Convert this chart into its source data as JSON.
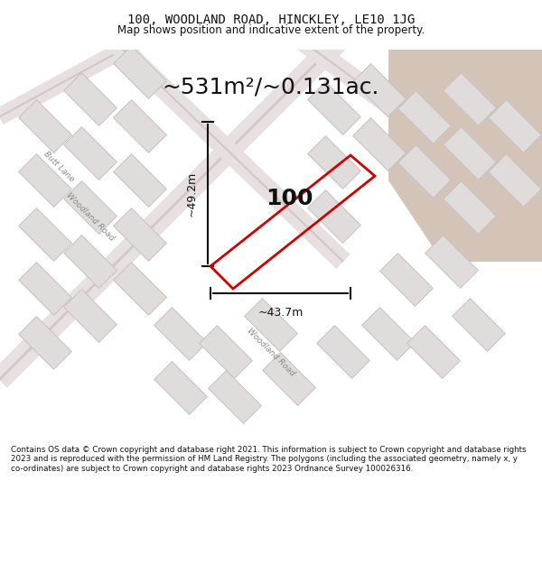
{
  "title_line1": "100, WOODLAND ROAD, HINCKLEY, LE10 1JG",
  "title_line2": "Map shows position and indicative extent of the property.",
  "area_text": "~531m²/~0.131ac.",
  "property_number": "100",
  "dim_vertical": "~49.2m",
  "dim_horizontal": "~43.7m",
  "footer_text": "Contains OS data © Crown copyright and database right 2021. This information is subject to Crown copyright and database rights 2023 and is reproduced with the permission of HM Land Registry. The polygons (including the associated geometry, namely x, y co-ordinates) are subject to Crown copyright and database rights 2023 Ordnance Survey 100026316.",
  "bg_color": "#f0eeee",
  "map_bg": "#f5f3f3",
  "road_color": "#f5c8c8",
  "building_color": "#e8e4e4",
  "highlight_color": "#c8b8b8",
  "property_outline_color": "#cc0000",
  "dim_line_color": "#111111",
  "text_color": "#111111",
  "title_bg": "#ffffff"
}
